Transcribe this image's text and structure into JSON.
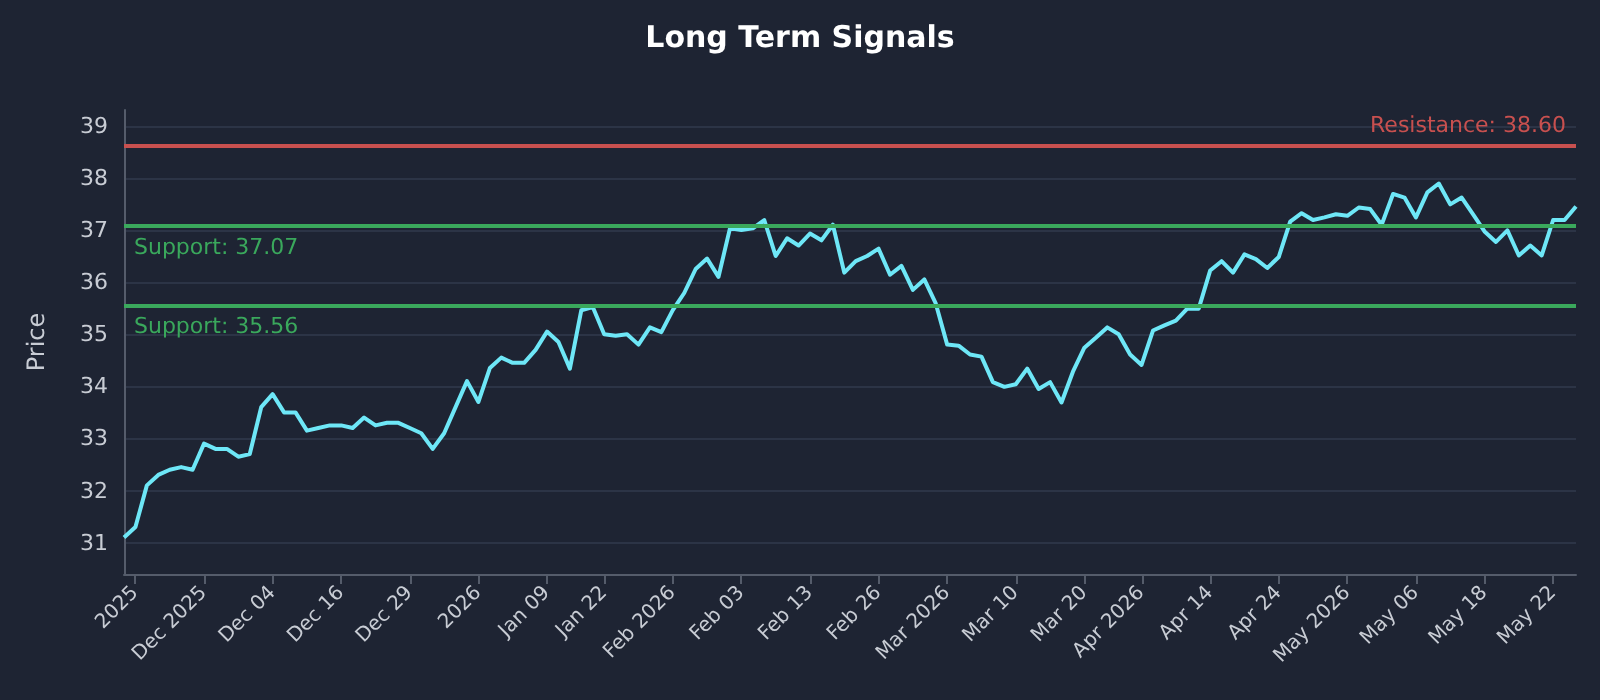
{
  "chart_data": {
    "type": "line",
    "title": "Long Term Signals",
    "ylabel": "Price",
    "categories": [
      null,
      "2025",
      null,
      null,
      null,
      null,
      null,
      "Dec 2025",
      null,
      null,
      null,
      null,
      null,
      "Dec 04",
      null,
      null,
      null,
      null,
      null,
      "Dec 16",
      null,
      null,
      null,
      null,
      null,
      "Dec 29",
      null,
      null,
      null,
      null,
      null,
      "2026",
      null,
      null,
      null,
      null,
      null,
      "Jan 09",
      null,
      null,
      null,
      null,
      "Jan 22",
      null,
      null,
      null,
      null,
      null,
      "Feb 2026",
      null,
      null,
      null,
      null,
      null,
      "Feb 03",
      null,
      null,
      null,
      null,
      null,
      "Feb 13",
      null,
      null,
      null,
      null,
      null,
      "Feb 26",
      null,
      null,
      null,
      null,
      null,
      "Mar 2026",
      null,
      null,
      null,
      null,
      null,
      "Mar 10",
      null,
      null,
      null,
      null,
      null,
      "Mar 20",
      null,
      null,
      null,
      null,
      "Apr 2026",
      null,
      null,
      null,
      null,
      null,
      "Apr 14",
      null,
      null,
      null,
      null,
      null,
      "Apr 24",
      null,
      null,
      null,
      null,
      null,
      "May 2026",
      null,
      null,
      null,
      null,
      null,
      "May 06",
      null,
      null,
      null,
      null,
      null,
      "May 18",
      null,
      null,
      null,
      null,
      null,
      "May 22",
      null,
      null
    ],
    "series": [
      {
        "color": "#6ee7f7",
        "values": [
          31.1,
          31.3,
          32.1,
          32.3,
          32.4,
          32.45,
          32.4,
          32.9,
          32.8,
          32.8,
          32.65,
          32.7,
          33.6,
          33.85,
          33.5,
          33.5,
          33.15,
          33.2,
          33.25,
          33.25,
          33.2,
          33.4,
          33.25,
          33.3,
          33.3,
          33.2,
          33.1,
          32.8,
          33.1,
          33.6,
          34.1,
          33.7,
          34.35,
          34.55,
          34.45,
          34.45,
          34.7,
          35.05,
          34.85,
          34.34,
          35.46,
          35.52,
          35.0,
          34.97,
          35.0,
          34.8,
          35.13,
          35.04,
          35.46,
          35.79,
          36.25,
          36.45,
          36.1,
          37.03,
          37.0,
          37.03,
          37.19,
          36.5,
          36.84,
          36.7,
          36.93,
          36.8,
          37.1,
          36.18,
          36.4,
          36.5,
          36.64,
          36.14,
          36.31,
          35.85,
          36.05,
          35.59,
          34.8,
          34.78,
          34.61,
          34.57,
          34.08,
          33.99,
          34.04,
          34.34,
          33.95,
          34.08,
          33.69,
          34.28,
          34.74,
          34.93,
          35.13,
          35.0,
          34.61,
          34.41,
          35.07,
          35.17,
          35.26,
          35.49,
          35.49,
          36.22,
          36.4,
          36.18,
          36.53,
          36.44,
          36.27,
          36.48,
          37.16,
          37.32,
          37.19,
          37.24,
          37.3,
          37.27,
          37.43,
          37.4,
          37.1,
          37.69,
          37.62,
          37.24,
          37.72,
          37.89,
          37.49,
          37.62,
          37.3,
          36.97,
          36.77,
          36.99,
          36.51,
          36.7,
          36.51,
          37.19,
          37.19,
          37.45
        ]
      }
    ],
    "ylim": [
      30.4,
      39.3
    ],
    "yticks": [
      31,
      32,
      33,
      34,
      35,
      36,
      37,
      38,
      39
    ],
    "grid": "y",
    "marker": "none",
    "line_style": "solid",
    "ref_lines": [
      {
        "axis": "y",
        "value": 38.6,
        "label": "Resistance: 38.60",
        "color": "#c8504f"
      },
      {
        "axis": "y",
        "value": 37.07,
        "label": "Support: 37.07",
        "color": "#3aa85c"
      },
      {
        "axis": "y",
        "value": 35.56,
        "label": "Support: 35.56",
        "color": "#3aa85c"
      }
    ]
  }
}
